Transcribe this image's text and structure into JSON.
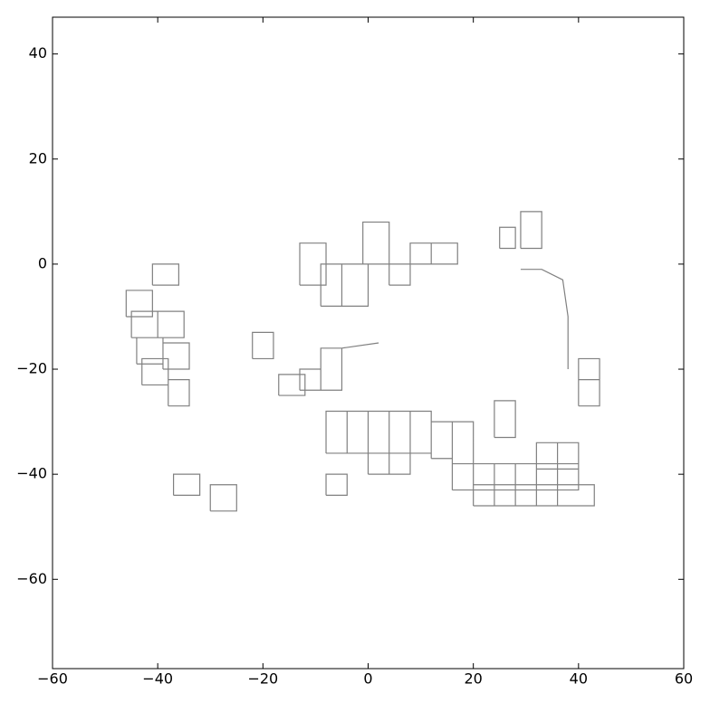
{
  "chart_data": {
    "type": "line",
    "color": "#808080",
    "xlim": [
      -60,
      60
    ],
    "ylim": [
      -77,
      47
    ],
    "xticks": [
      {
        "value": -60,
        "label": "−60"
      },
      {
        "value": -40,
        "label": "−40"
      },
      {
        "value": -20,
        "label": "−20"
      },
      0,
      20,
      40,
      60
    ],
    "yticks": [
      {
        "value": -60,
        "label": "−60"
      },
      {
        "value": -40,
        "label": "−40"
      },
      {
        "value": -20,
        "label": "−20"
      },
      0,
      20,
      40
    ],
    "x": [
      -46,
      -41,
      -41,
      -46,
      -46,
      null,
      -45,
      -40,
      -40,
      -45,
      -45,
      null,
      -44,
      -39,
      -39,
      -44,
      -44,
      null,
      -43,
      -38,
      -38,
      -43,
      -43,
      null,
      -39,
      -34,
      -34,
      -39,
      -39,
      null,
      -40,
      -35,
      -35,
      -40,
      -40,
      null,
      -41,
      -36,
      -36,
      -41,
      -41,
      null,
      -38,
      -34,
      -34,
      -38,
      -38,
      null,
      -37,
      -32,
      -32,
      -37,
      -37,
      null,
      -30,
      -25,
      -25,
      -30,
      -30,
      null,
      -22,
      -18,
      -18,
      -22,
      -22,
      null,
      -17,
      -12,
      -12,
      -17,
      -17,
      null,
      -13,
      -9,
      -9,
      -13,
      -13,
      null,
      -9,
      -5,
      -5,
      -9,
      -9,
      null,
      -13,
      -8,
      -8,
      -13,
      -13,
      null,
      -9,
      -5,
      -5,
      -9,
      -9,
      null,
      -5,
      0,
      0,
      -5,
      -5,
      null,
      -1,
      4,
      4,
      -1,
      -1,
      null,
      4,
      8,
      8,
      4,
      4,
      null,
      8,
      12,
      12,
      8,
      8,
      null,
      12,
      17,
      17,
      12,
      12,
      null,
      25,
      28,
      28,
      25,
      25,
      null,
      29,
      33,
      33,
      29,
      29,
      null,
      40,
      44,
      44,
      40,
      40,
      null,
      40,
      44,
      44,
      40,
      40,
      null,
      -8,
      -4,
      -4,
      -8,
      -8,
      null,
      -4,
      0,
      0,
      -4,
      -4,
      null,
      0,
      4,
      4,
      0,
      0,
      null,
      4,
      8,
      8,
      4,
      4,
      null,
      8,
      12,
      12,
      8,
      8,
      null,
      12,
      16,
      16,
      12,
      12,
      null,
      16,
      20,
      20,
      16,
      16,
      null,
      0,
      4,
      4,
      0,
      0,
      null,
      4,
      8,
      8,
      4,
      4,
      null,
      -8,
      -4,
      -4,
      -8,
      -8,
      null,
      16,
      20,
      20,
      16,
      16,
      null,
      20,
      24,
      24,
      20,
      20,
      null,
      24,
      28,
      28,
      24,
      24,
      null,
      28,
      32,
      32,
      28,
      28,
      null,
      32,
      36,
      36,
      32,
      32,
      null,
      36,
      40,
      40,
      36,
      36,
      null,
      20,
      24,
      24,
      20,
      20,
      null,
      24,
      28,
      28,
      24,
      24,
      null,
      28,
      32,
      32,
      28,
      28,
      null,
      32,
      36,
      36,
      32,
      32,
      null,
      36,
      43,
      43,
      36,
      36,
      null,
      32,
      36,
      36,
      32,
      32,
      null,
      36,
      40,
      40,
      36,
      36,
      null,
      24,
      28,
      28,
      24,
      24,
      null,
      29,
      33,
      37,
      38,
      38,
      null,
      -5,
      2
    ],
    "y": [
      -10,
      -10,
      -5,
      -5,
      -10,
      null,
      -14,
      -14,
      -9,
      -9,
      -14,
      null,
      -19,
      -19,
      -14,
      -14,
      -19,
      null,
      -23,
      -23,
      -18,
      -18,
      -23,
      null,
      -20,
      -20,
      -15,
      -15,
      -20,
      null,
      -14,
      -14,
      -9,
      -9,
      -14,
      null,
      -4,
      -4,
      0,
      0,
      -4,
      null,
      -27,
      -27,
      -22,
      -22,
      -27,
      null,
      -44,
      -44,
      -40,
      -40,
      -44,
      null,
      -47,
      -47,
      -42,
      -42,
      -47,
      null,
      -18,
      -18,
      -13,
      -13,
      -18,
      null,
      -25,
      -25,
      -21,
      -21,
      -25,
      null,
      -24,
      -24,
      -20,
      -20,
      -24,
      null,
      -24,
      -24,
      -16,
      -16,
      -24,
      null,
      -4,
      -4,
      4,
      4,
      -4,
      null,
      -8,
      -8,
      0,
      0,
      -8,
      null,
      -8,
      -8,
      0,
      0,
      -8,
      null,
      0,
      0,
      8,
      8,
      0,
      null,
      -4,
      -4,
      0,
      0,
      -4,
      null,
      0,
      0,
      4,
      4,
      0,
      null,
      0,
      0,
      4,
      4,
      0,
      null,
      3,
      3,
      7,
      7,
      3,
      null,
      3,
      3,
      10,
      10,
      3,
      null,
      -22,
      -22,
      -18,
      -18,
      -22,
      null,
      -27,
      -27,
      -22,
      -22,
      -27,
      null,
      -36,
      -36,
      -28,
      -28,
      -36,
      null,
      -36,
      -36,
      -28,
      -28,
      -36,
      null,
      -36,
      -36,
      -28,
      -28,
      -36,
      null,
      -36,
      -36,
      -28,
      -28,
      -36,
      null,
      -36,
      -36,
      -28,
      -28,
      -36,
      null,
      -37,
      -37,
      -30,
      -30,
      -37,
      null,
      -38,
      -38,
      -30,
      -30,
      -38,
      null,
      -40,
      -40,
      -36,
      -36,
      -40,
      null,
      -40,
      -40,
      -36,
      -36,
      -40,
      null,
      -44,
      -44,
      -40,
      -40,
      -44,
      null,
      -43,
      -43,
      -38,
      -38,
      -43,
      null,
      -43,
      -43,
      -38,
      -38,
      -43,
      null,
      -43,
      -43,
      -38,
      -38,
      -43,
      null,
      -43,
      -43,
      -38,
      -38,
      -43,
      null,
      -43,
      -43,
      -38,
      -38,
      -43,
      null,
      -43,
      -43,
      -38,
      -38,
      -43,
      null,
      -46,
      -46,
      -42,
      -42,
      -46,
      null,
      -46,
      -46,
      -42,
      -42,
      -46,
      null,
      -46,
      -46,
      -42,
      -42,
      -46,
      null,
      -46,
      -46,
      -42,
      -42,
      -46,
      null,
      -46,
      -46,
      -42,
      -42,
      -46,
      null,
      -39,
      -39,
      -34,
      -34,
      -39,
      null,
      -39,
      -39,
      -34,
      -34,
      -39,
      null,
      -33,
      -33,
      -26,
      -26,
      -33,
      null,
      -1,
      -1,
      -3,
      -10,
      -20,
      null,
      -16,
      -15
    ]
  }
}
